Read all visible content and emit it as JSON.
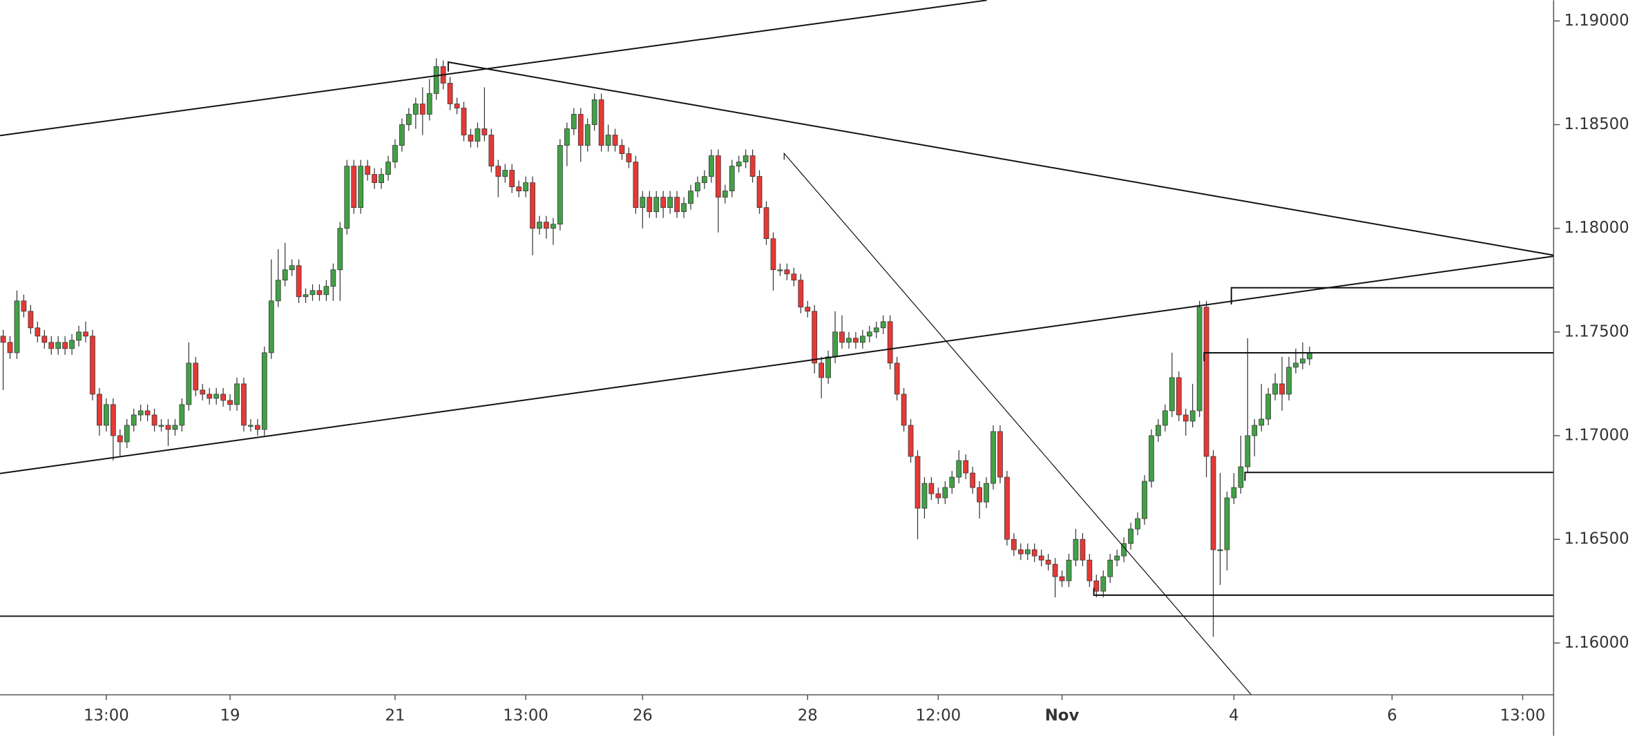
{
  "chart_data": {
    "type": "candlestick",
    "up_color": "#43a047",
    "down_color": "#e53935",
    "xlim": [
      -0.46,
      225.5
    ],
    "xticks": [
      {
        "value": 15,
        "label": "13:00"
      },
      {
        "value": 33,
        "label": "19"
      },
      {
        "value": 57,
        "label": "21"
      },
      {
        "value": 76,
        "label": "13:00"
      },
      {
        "value": 93,
        "label": "26"
      },
      {
        "value": 117,
        "label": "28"
      },
      {
        "value": 136,
        "label": "12:00"
      },
      {
        "value": 154,
        "label": "Nov"
      },
      {
        "value": 179,
        "label": "4"
      },
      {
        "value": 202,
        "label": "6"
      },
      {
        "value": 221,
        "label": "13:00"
      }
    ],
    "ylim": [
      1.1575,
      1.191
    ],
    "yticks": [
      {
        "value": 1.16,
        "label": "1.16000"
      },
      {
        "value": 1.165,
        "label": "1.16500"
      },
      {
        "value": 1.17,
        "label": "1.17000"
      },
      {
        "value": 1.175,
        "label": "1.17500"
      },
      {
        "value": 1.18,
        "label": "1.18000"
      },
      {
        "value": 1.185,
        "label": "1.18500"
      },
      {
        "value": 1.19,
        "label": "1.19000"
      }
    ],
    "candles": {
      "x": [
        0,
        1,
        2,
        3,
        4,
        5,
        6,
        7,
        8,
        9,
        10,
        11,
        12,
        13,
        14,
        15,
        16,
        17,
        18,
        19,
        20,
        21,
        22,
        23,
        24,
        25,
        26,
        27,
        28,
        29,
        30,
        31,
        32,
        33,
        34,
        35,
        36,
        37,
        38,
        39,
        40,
        41,
        42,
        43,
        44,
        45,
        46,
        47,
        48,
        49,
        50,
        51,
        52,
        53,
        54,
        55,
        56,
        57,
        58,
        59,
        60,
        61,
        62,
        63,
        64,
        65,
        66,
        67,
        68,
        69,
        70,
        71,
        72,
        73,
        74,
        75,
        76,
        77,
        78,
        79,
        80,
        81,
        82,
        83,
        84,
        85,
        86,
        87,
        88,
        89,
        90,
        91,
        92,
        93,
        94,
        95,
        96,
        97,
        98,
        99,
        100,
        101,
        102,
        103,
        104,
        105,
        106,
        107,
        108,
        109,
        110,
        111,
        112,
        113,
        114,
        115,
        116,
        117,
        118,
        119,
        120,
        121,
        122,
        123,
        124,
        125,
        126,
        127,
        128,
        129,
        130,
        131,
        132,
        133,
        134,
        135,
        136,
        137,
        138,
        139,
        140,
        141,
        142,
        143,
        144,
        145,
        146,
        147,
        148,
        149,
        150,
        151,
        152,
        153,
        154,
        155,
        156,
        157,
        158,
        159,
        160,
        161,
        162,
        163,
        164,
        165,
        166,
        167,
        168,
        169,
        170,
        171,
        172,
        173,
        174,
        175,
        176,
        177,
        178,
        179,
        180,
        181,
        182,
        183,
        184,
        185,
        186,
        187,
        188,
        189,
        190
      ],
      "open": [
        1.1748,
        1.1745,
        1.174,
        1.1765,
        1.176,
        1.1752,
        1.1748,
        1.1745,
        1.1742,
        1.1745,
        1.1742,
        1.1746,
        1.175,
        1.1748,
        1.172,
        1.1705,
        1.1715,
        1.17,
        1.1697,
        1.1705,
        1.171,
        1.1712,
        1.171,
        1.1705,
        1.1705,
        1.1703,
        1.1705,
        1.1715,
        1.1735,
        1.1722,
        1.172,
        1.1718,
        1.172,
        1.1717,
        1.1715,
        1.1725,
        1.1705,
        1.1705,
        1.1703,
        1.174,
        1.1765,
        1.1775,
        1.178,
        1.1782,
        1.1767,
        1.1768,
        1.177,
        1.1768,
        1.1772,
        1.178,
        1.18,
        1.183,
        1.181,
        1.183,
        1.1826,
        1.1822,
        1.1826,
        1.1832,
        1.184,
        1.185,
        1.1855,
        1.186,
        1.1855,
        1.1865,
        1.1878,
        1.187,
        1.186,
        1.1858,
        1.1845,
        1.1842,
        1.1848,
        1.1845,
        1.183,
        1.1825,
        1.1828,
        1.182,
        1.1818,
        1.1822,
        1.18,
        1.1803,
        1.18,
        1.1802,
        1.184,
        1.1848,
        1.1855,
        1.184,
        1.185,
        1.1862,
        1.184,
        1.1845,
        1.184,
        1.1836,
        1.1832,
        1.181,
        1.1815,
        1.1808,
        1.1815,
        1.181,
        1.1815,
        1.1808,
        1.1812,
        1.1818,
        1.1822,
        1.1825,
        1.1835,
        1.1815,
        1.1818,
        1.183,
        1.1832,
        1.1835,
        1.1825,
        1.181,
        1.1795,
        1.178,
        1.178,
        1.1778,
        1.1775,
        1.1762,
        1.176,
        1.1735,
        1.1728,
        1.1738,
        1.175,
        1.1745,
        1.1747,
        1.1745,
        1.1748,
        1.175,
        1.1752,
        1.1755,
        1.1735,
        1.172,
        1.1705,
        1.169,
        1.1665,
        1.1677,
        1.1672,
        1.167,
        1.1675,
        1.168,
        1.1688,
        1.1682,
        1.1675,
        1.1668,
        1.1677,
        1.1702,
        1.168,
        1.165,
        1.1645,
        1.1643,
        1.1645,
        1.1642,
        1.164,
        1.1638,
        1.1632,
        1.163,
        1.164,
        1.165,
        1.164,
        1.163,
        1.1625,
        1.1632,
        1.164,
        1.1642,
        1.1648,
        1.1655,
        1.166,
        1.1678,
        1.17,
        1.1705,
        1.1712,
        1.1728,
        1.171,
        1.1707,
        1.1712,
        1.1762,
        1.169,
        1.1645,
        1.1645,
        1.167,
        1.1675,
        1.1685,
        1.17,
        1.1705,
        1.1708,
        1.172,
        1.1725,
        1.172,
        1.1733,
        1.1735,
        1.1737
      ],
      "high": [
        1.1751,
        1.1748,
        1.177,
        1.1768,
        1.1763,
        1.1755,
        1.1751,
        1.1748,
        1.1748,
        1.1748,
        1.1749,
        1.1753,
        1.1755,
        1.1751,
        1.1723,
        1.1718,
        1.1718,
        1.1703,
        1.1708,
        1.1713,
        1.1715,
        1.1715,
        1.1713,
        1.1708,
        1.1708,
        1.1708,
        1.1718,
        1.1745,
        1.1738,
        1.1725,
        1.1723,
        1.1723,
        1.1723,
        1.172,
        1.1728,
        1.1728,
        1.1708,
        1.1708,
        1.1743,
        1.1785,
        1.179,
        1.1793,
        1.1785,
        1.1785,
        1.1771,
        1.1773,
        1.1773,
        1.1775,
        1.1783,
        1.1803,
        1.1833,
        1.1833,
        1.1833,
        1.1833,
        1.1829,
        1.1829,
        1.1835,
        1.1843,
        1.1853,
        1.1858,
        1.1863,
        1.1868,
        1.1872,
        1.1882,
        1.1881,
        1.1873,
        1.1863,
        1.1861,
        1.1848,
        1.1851,
        1.1868,
        1.1848,
        1.1833,
        1.1831,
        1.1831,
        1.1823,
        1.1825,
        1.1825,
        1.1806,
        1.1806,
        1.1805,
        1.1843,
        1.1851,
        1.1858,
        1.1858,
        1.1853,
        1.1865,
        1.1865,
        1.185,
        1.1848,
        1.1843,
        1.1839,
        1.1835,
        1.1818,
        1.1818,
        1.1818,
        1.1818,
        1.1818,
        1.1818,
        1.1815,
        1.1821,
        1.1825,
        1.1828,
        1.1838,
        1.1838,
        1.1821,
        1.1833,
        1.1835,
        1.1838,
        1.1838,
        1.1828,
        1.1813,
        1.1798,
        1.1783,
        1.1783,
        1.1781,
        1.1778,
        1.1765,
        1.1763,
        1.1738,
        1.1741,
        1.176,
        1.1758,
        1.175,
        1.175,
        1.1751,
        1.1753,
        1.1755,
        1.1758,
        1.1758,
        1.1738,
        1.1723,
        1.1708,
        1.1693,
        1.168,
        1.168,
        1.1675,
        1.1678,
        1.1683,
        1.1693,
        1.1691,
        1.1685,
        1.1678,
        1.168,
        1.1705,
        1.1705,
        1.1683,
        1.1653,
        1.1648,
        1.1648,
        1.1648,
        1.1645,
        1.1643,
        1.1641,
        1.1635,
        1.1643,
        1.1655,
        1.1653,
        1.1643,
        1.1633,
        1.1635,
        1.1643,
        1.1645,
        1.1651,
        1.1658,
        1.1663,
        1.1681,
        1.1703,
        1.1708,
        1.1715,
        1.174,
        1.1731,
        1.1713,
        1.1725,
        1.1765,
        1.1765,
        1.1693,
        1.1682,
        1.1673,
        1.1682,
        1.17,
        1.1747,
        1.1708,
        1.1725,
        1.1723,
        1.173,
        1.1738,
        1.1738,
        1.1742,
        1.1745,
        1.1743
      ],
      "low": [
        1.1722,
        1.1737,
        1.1737,
        1.1757,
        1.1749,
        1.1745,
        1.1742,
        1.1739,
        1.1739,
        1.1739,
        1.1739,
        1.1743,
        1.1745,
        1.1717,
        1.17,
        1.1702,
        1.1688,
        1.169,
        1.1694,
        1.1702,
        1.1707,
        1.1707,
        1.1702,
        1.1702,
        1.1695,
        1.17,
        1.1702,
        1.1712,
        1.1719,
        1.1717,
        1.1715,
        1.1715,
        1.1714,
        1.1712,
        1.1712,
        1.1702,
        1.1702,
        1.17,
        1.17,
        1.1737,
        1.1762,
        1.1772,
        1.1777,
        1.1764,
        1.1764,
        1.1765,
        1.1765,
        1.1765,
        1.1765,
        1.1765,
        1.1797,
        1.1807,
        1.1807,
        1.1823,
        1.1819,
        1.1819,
        1.1823,
        1.1829,
        1.1837,
        1.1847,
        1.1848,
        1.1845,
        1.1852,
        1.1862,
        1.1867,
        1.1857,
        1.1855,
        1.1842,
        1.1839,
        1.1839,
        1.1842,
        1.1827,
        1.1815,
        1.1822,
        1.1817,
        1.1815,
        1.1815,
        1.1787,
        1.1797,
        1.1795,
        1.1792,
        1.1799,
        1.183,
        1.1845,
        1.1832,
        1.1837,
        1.1847,
        1.1837,
        1.1837,
        1.1837,
        1.1833,
        1.1829,
        1.1807,
        1.18,
        1.1805,
        1.1805,
        1.1805,
        1.1807,
        1.1805,
        1.1805,
        1.1809,
        1.1815,
        1.1819,
        1.1822,
        1.1798,
        1.1812,
        1.1815,
        1.1827,
        1.1829,
        1.1822,
        1.1807,
        1.1792,
        1.177,
        1.1777,
        1.1775,
        1.1772,
        1.1759,
        1.1757,
        1.173,
        1.1718,
        1.1725,
        1.1735,
        1.1742,
        1.1742,
        1.1742,
        1.1742,
        1.1745,
        1.1747,
        1.1749,
        1.1732,
        1.1717,
        1.1702,
        1.1687,
        1.165,
        1.166,
        1.1669,
        1.1667,
        1.1667,
        1.1672,
        1.1677,
        1.1679,
        1.1672,
        1.166,
        1.1665,
        1.1674,
        1.1677,
        1.1647,
        1.1642,
        1.164,
        1.164,
        1.1639,
        1.1637,
        1.1635,
        1.1622,
        1.1627,
        1.1627,
        1.1637,
        1.1637,
        1.1627,
        1.1622,
        1.1622,
        1.1629,
        1.1637,
        1.1639,
        1.1645,
        1.1652,
        1.1657,
        1.1675,
        1.1697,
        1.1702,
        1.1709,
        1.1707,
        1.17,
        1.1704,
        1.1709,
        1.168,
        1.1603,
        1.1628,
        1.1635,
        1.1667,
        1.1672,
        1.1682,
        1.169,
        1.1702,
        1.1705,
        1.1717,
        1.1712,
        1.1717,
        1.173,
        1.1732,
        1.1734
      ],
      "close": [
        1.1745,
        1.174,
        1.1765,
        1.176,
        1.1752,
        1.1748,
        1.1745,
        1.1742,
        1.1745,
        1.1742,
        1.1746,
        1.175,
        1.1748,
        1.172,
        1.1705,
        1.1715,
        1.17,
        1.1697,
        1.1705,
        1.171,
        1.1712,
        1.171,
        1.1705,
        1.1705,
        1.1703,
        1.1705,
        1.1715,
        1.1735,
        1.1722,
        1.172,
        1.1718,
        1.172,
        1.1717,
        1.1715,
        1.1725,
        1.1705,
        1.1705,
        1.1703,
        1.174,
        1.1765,
        1.1775,
        1.178,
        1.1782,
        1.1767,
        1.1768,
        1.177,
        1.1768,
        1.1772,
        1.178,
        1.18,
        1.183,
        1.181,
        1.183,
        1.1826,
        1.1822,
        1.1826,
        1.1832,
        1.184,
        1.185,
        1.1855,
        1.186,
        1.1855,
        1.1865,
        1.1878,
        1.187,
        1.186,
        1.1858,
        1.1845,
        1.1842,
        1.1848,
        1.1845,
        1.183,
        1.1825,
        1.1828,
        1.182,
        1.1818,
        1.1822,
        1.18,
        1.1803,
        1.18,
        1.1802,
        1.184,
        1.1848,
        1.1855,
        1.184,
        1.185,
        1.1862,
        1.184,
        1.1845,
        1.184,
        1.1836,
        1.1832,
        1.181,
        1.1815,
        1.1808,
        1.1815,
        1.181,
        1.1815,
        1.1808,
        1.1812,
        1.1818,
        1.1822,
        1.1825,
        1.1835,
        1.1815,
        1.1818,
        1.183,
        1.1832,
        1.1835,
        1.1825,
        1.181,
        1.1795,
        1.178,
        1.178,
        1.1778,
        1.1775,
        1.1762,
        1.176,
        1.1735,
        1.1728,
        1.1738,
        1.175,
        1.1745,
        1.1747,
        1.1745,
        1.1748,
        1.175,
        1.1752,
        1.1755,
        1.1735,
        1.172,
        1.1705,
        1.169,
        1.1665,
        1.1677,
        1.1672,
        1.167,
        1.1675,
        1.168,
        1.1688,
        1.1682,
        1.1675,
        1.1668,
        1.1677,
        1.1702,
        1.168,
        1.165,
        1.1645,
        1.1643,
        1.1645,
        1.1642,
        1.164,
        1.1638,
        1.1632,
        1.163,
        1.164,
        1.165,
        1.164,
        1.163,
        1.1625,
        1.1632,
        1.164,
        1.1642,
        1.1648,
        1.1655,
        1.166,
        1.1678,
        1.17,
        1.1705,
        1.1712,
        1.1728,
        1.171,
        1.1707,
        1.1712,
        1.1762,
        1.169,
        1.1645,
        1.1645,
        1.167,
        1.1675,
        1.1685,
        1.17,
        1.1705,
        1.1708,
        1.172,
        1.1725,
        1.172,
        1.1733,
        1.1735,
        1.1737,
        1.174
      ]
    }
  }
}
